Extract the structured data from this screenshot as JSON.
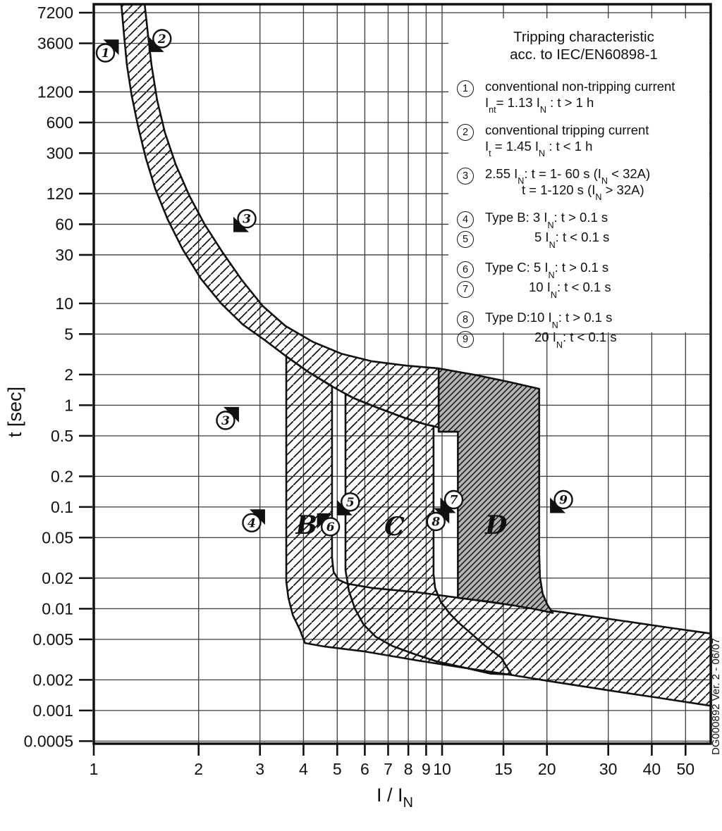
{
  "legend": {
    "title1": "Tripping characteristic",
    "title2": "acc. to IEC/EN60898-1",
    "items": [
      {
        "num": "1",
        "group_start": false,
        "pair_second": false,
        "rows": [
          {
            "indent": 0,
            "segs": [
              [
                "t",
                "conventional non-tripping current"
              ]
            ]
          },
          {
            "indent": 0,
            "segs": [
              [
                "t",
                "I"
              ],
              [
                "s",
                "nt"
              ],
              [
                "t",
                "= 1.13 I"
              ],
              [
                "s",
                "N"
              ],
              [
                "t",
                " : t > 1 h"
              ]
            ]
          }
        ]
      },
      {
        "num": "2",
        "group_start": true,
        "pair_second": false,
        "rows": [
          {
            "indent": 0,
            "segs": [
              [
                "t",
                "conventional tripping current"
              ]
            ]
          },
          {
            "indent": 0,
            "segs": [
              [
                "t",
                "I"
              ],
              [
                "s",
                "t"
              ],
              [
                "t",
                " = 1.45 I"
              ],
              [
                "s",
                "N"
              ],
              [
                "t",
                " : t < 1 h"
              ]
            ]
          }
        ]
      },
      {
        "num": "3",
        "group_start": true,
        "pair_second": false,
        "rows": [
          {
            "indent": 0,
            "segs": [
              [
                "t",
                "2.55 I"
              ],
              [
                "s",
                "N"
              ],
              [
                "t",
                ": t = 1- 60 s (I"
              ],
              [
                "s",
                "N"
              ],
              [
                "t",
                " < 32A)"
              ]
            ]
          },
          {
            "indent": 52,
            "segs": [
              [
                "t",
                "t = 1-120 s (I"
              ],
              [
                "s",
                "N"
              ],
              [
                "t",
                " > 32A)"
              ]
            ]
          }
        ]
      },
      {
        "num": "4",
        "group_start": true,
        "pair_second": false,
        "rows": [
          {
            "indent": 0,
            "segs": [
              [
                "t",
                "Type B: 3 I"
              ],
              [
                "s",
                "N"
              ],
              [
                "t",
                ": t > 0.1 s"
              ]
            ]
          }
        ]
      },
      {
        "num": "5",
        "group_start": false,
        "pair_second": true,
        "rows": [
          {
            "indent": 70,
            "segs": [
              [
                "t",
                "5 I"
              ],
              [
                "s",
                "N"
              ],
              [
                "t",
                ": t < 0.1 s"
              ]
            ]
          }
        ]
      },
      {
        "num": "6",
        "group_start": true,
        "pair_second": false,
        "rows": [
          {
            "indent": 0,
            "segs": [
              [
                "t",
                "Type C: 5 I"
              ],
              [
                "s",
                "N"
              ],
              [
                "t",
                ": t > 0.1 s"
              ]
            ]
          }
        ]
      },
      {
        "num": "7",
        "group_start": false,
        "pair_second": true,
        "rows": [
          {
            "indent": 62,
            "segs": [
              [
                "t",
                "10 I"
              ],
              [
                "s",
                "N"
              ],
              [
                "t",
                ": t < 0.1 s"
              ]
            ]
          }
        ]
      },
      {
        "num": "8",
        "group_start": true,
        "pair_second": false,
        "rows": [
          {
            "indent": 0,
            "segs": [
              [
                "t",
                "Type D:10 I"
              ],
              [
                "s",
                "N"
              ],
              [
                "t",
                ": t > 0.1 s"
              ]
            ]
          }
        ]
      },
      {
        "num": "9",
        "group_start": false,
        "pair_second": true,
        "rows": [
          {
            "indent": 70,
            "segs": [
              [
                "t",
                "20 I"
              ],
              [
                "s",
                "N"
              ],
              [
                "t",
                ": t < 0.1 s"
              ]
            ]
          }
        ]
      }
    ]
  },
  "side_caption": "DG000892 Ver. 2 - 06/07",
  "colors": {
    "line": "#111111",
    "grid": "#3a3a3a",
    "d_fill": "#b2b2b2",
    "background": "#ffffff"
  },
  "chart_data": {
    "type": "area",
    "title": "Tripping characteristic acc. to IEC/EN60898-1",
    "xlabel": "I / I",
    "xlabel_sub": "N",
    "ylabel": "t [sec]",
    "x_scale": "log",
    "y_scale": "log",
    "grid": true,
    "x_ticks": [
      "1",
      "2",
      "3",
      "4",
      "5",
      "6",
      "7",
      "8",
      "9",
      "10",
      "15",
      "20",
      "30",
      "40",
      "50"
    ],
    "x_tick_values": [
      1,
      2,
      3,
      4,
      5,
      6,
      7,
      8,
      9,
      10,
      15,
      20,
      30,
      40,
      50
    ],
    "y_ticks": [
      "7200",
      "3600",
      "1200",
      "600",
      "300",
      "120",
      "60",
      "30",
      "10",
      "5",
      "2",
      "1",
      "0.5",
      "0.2",
      "0.1",
      "0.05",
      "0.02",
      "0.01",
      "0.005",
      "0.002",
      "0.001",
      "0.0005"
    ],
    "y_tick_values": [
      7200,
      3600,
      1200,
      600,
      300,
      120,
      60,
      30,
      10,
      5,
      2,
      1,
      0.5,
      0.2,
      0.1,
      0.05,
      0.02,
      0.01,
      0.005,
      0.002,
      0.001,
      0.0005
    ],
    "x_range": [
      1,
      59.2
    ],
    "y_range": [
      0.000474,
      8700
    ],
    "series": {
      "upper_thermal": [
        [
          1.4,
          8700
        ],
        [
          1.43,
          4500
        ],
        [
          1.465,
          2200
        ],
        [
          1.52,
          1000
        ],
        [
          1.6,
          480
        ],
        [
          1.72,
          230
        ],
        [
          1.88,
          115
        ],
        [
          2.08,
          60
        ],
        [
          2.34,
          32
        ],
        [
          2.66,
          17
        ],
        [
          3.05,
          9.5
        ],
        [
          3.55,
          6.0
        ],
        [
          4.25,
          4.2
        ],
        [
          5.15,
          3.2
        ],
        [
          6.3,
          2.7
        ],
        [
          7.9,
          2.45
        ],
        [
          9.78,
          2.3
        ]
      ],
      "lower_thermal": [
        [
          1.2,
          8700
        ],
        [
          1.22,
          4500
        ],
        [
          1.245,
          2200
        ],
        [
          1.285,
          1100
        ],
        [
          1.34,
          550
        ],
        [
          1.41,
          270
        ],
        [
          1.5,
          135
        ],
        [
          1.63,
          67
        ],
        [
          1.8,
          34
        ],
        [
          2.03,
          17.5
        ],
        [
          2.32,
          10
        ],
        [
          2.68,
          6.2
        ],
        [
          3.1,
          4.35
        ],
        [
          3.58,
          3.0
        ],
        [
          4.15,
          2.1
        ],
        [
          4.8,
          1.55
        ],
        [
          5.55,
          1.18
        ],
        [
          6.5,
          0.95
        ],
        [
          7.8,
          0.75
        ],
        [
          9.0,
          0.645
        ],
        [
          10.2,
          0.585
        ],
        [
          11.1,
          0.55
        ]
      ],
      "thermal_close": [
        [
          9.78,
          2.3
        ],
        [
          9.78,
          0.55
        ],
        [
          11.1,
          0.55
        ]
      ],
      "band_b": [
        [
          3.57,
          3.05
        ],
        [
          3.57,
          0.06
        ],
        [
          3.57,
          0.0185
        ],
        [
          3.62,
          0.0128
        ],
        [
          3.73,
          0.0086
        ],
        [
          3.9,
          0.0063
        ],
        [
          4.04,
          0.0046
        ],
        [
          4.6,
          0.00425
        ],
        [
          6.0,
          0.0038
        ],
        [
          8.5,
          0.0031
        ],
        [
          11,
          0.0027
        ],
        [
          15,
          0.0023
        ],
        [
          21,
          0.00191
        ],
        [
          30,
          0.00158
        ],
        [
          42,
          0.00133
        ],
        [
          59.2,
          0.00111
        ],
        [
          59.2,
          0.0057
        ],
        [
          45,
          0.0065
        ],
        [
          33,
          0.0076
        ],
        [
          24,
          0.0089
        ],
        [
          17,
          0.0105
        ],
        [
          12,
          0.0124
        ],
        [
          8.5,
          0.0145
        ],
        [
          6.3,
          0.016
        ],
        [
          5.35,
          0.0176
        ],
        [
          5.05,
          0.0192
        ],
        [
          4.88,
          0.023
        ],
        [
          4.83,
          0.032
        ],
        [
          4.83,
          1.54
        ],
        [
          4.15,
          2.1
        ],
        [
          3.58,
          3.0
        ],
        [
          3.57,
          3.05
        ]
      ],
      "band_c": [
        [
          5.28,
          1.3
        ],
        [
          5.28,
          0.045
        ],
        [
          5.28,
          0.024
        ],
        [
          5.4,
          0.015
        ],
        [
          5.62,
          0.01
        ],
        [
          5.95,
          0.007
        ],
        [
          6.45,
          0.0053
        ],
        [
          7.2,
          0.0043
        ],
        [
          8.3,
          0.0036
        ],
        [
          9.6,
          0.00305
        ],
        [
          11.5,
          0.00265
        ],
        [
          13.8,
          0.0023
        ],
        [
          15.8,
          0.00225
        ],
        [
          14.8,
          0.0033
        ],
        [
          13.2,
          0.0044
        ],
        [
          12.2,
          0.0056
        ],
        [
          11.2,
          0.0072
        ],
        [
          10.5,
          0.009
        ],
        [
          9.9,
          0.0118
        ],
        [
          9.55,
          0.016
        ],
        [
          9.45,
          0.022
        ],
        [
          9.45,
          0.625
        ],
        [
          9.0,
          0.645
        ],
        [
          7.8,
          0.75
        ],
        [
          6.5,
          0.95
        ],
        [
          5.55,
          1.18
        ],
        [
          5.28,
          1.3
        ]
      ],
      "band_d": [
        [
          9.78,
          2.3
        ],
        [
          12.5,
          1.98
        ],
        [
          15.5,
          1.7
        ],
        [
          19.0,
          1.45
        ],
        [
          19.0,
          0.035
        ],
        [
          19.1,
          0.0205
        ],
        [
          19.45,
          0.014
        ],
        [
          20.1,
          0.0108
        ],
        [
          20.8,
          0.0091
        ],
        [
          18.5,
          0.0099
        ],
        [
          16.0,
          0.0108
        ],
        [
          13.5,
          0.0118
        ],
        [
          11.1,
          0.0128
        ],
        [
          11.1,
          0.55
        ],
        [
          9.78,
          0.55
        ],
        [
          9.78,
          2.3
        ]
      ]
    },
    "region_labels": [
      {
        "text": "B",
        "I": 4.08,
        "t": 0.066
      },
      {
        "text": "C",
        "I": 7.3,
        "t": 0.064
      },
      {
        "text": "D",
        "I": 14.3,
        "t": 0.066
      }
    ],
    "markers": [
      {
        "num": "1",
        "I": 1.08,
        "t": 2900,
        "flag": "ne"
      },
      {
        "num": "2",
        "I": 1.57,
        "t": 4000,
        "flag": "sw"
      },
      {
        "num": "3",
        "I": 2.75,
        "t": 68,
        "flag": "sw"
      },
      {
        "num": "3",
        "I": 2.39,
        "t": 0.71,
        "flag": "ne"
      },
      {
        "num": "4",
        "I": 2.84,
        "t": 0.07,
        "flag": "ne"
      },
      {
        "num": "5",
        "I": 5.45,
        "t": 0.112,
        "flag": "sw"
      },
      {
        "num": "6",
        "I": 4.78,
        "t": 0.064,
        "flag": "nw"
      },
      {
        "num": "7",
        "I": 10.8,
        "t": 0.118,
        "flag": "sw"
      },
      {
        "num": "8",
        "I": 9.6,
        "t": 0.072,
        "flag": "ne"
      },
      {
        "num": "9",
        "I": 22.3,
        "t": 0.118,
        "flag": "sw"
      }
    ]
  }
}
